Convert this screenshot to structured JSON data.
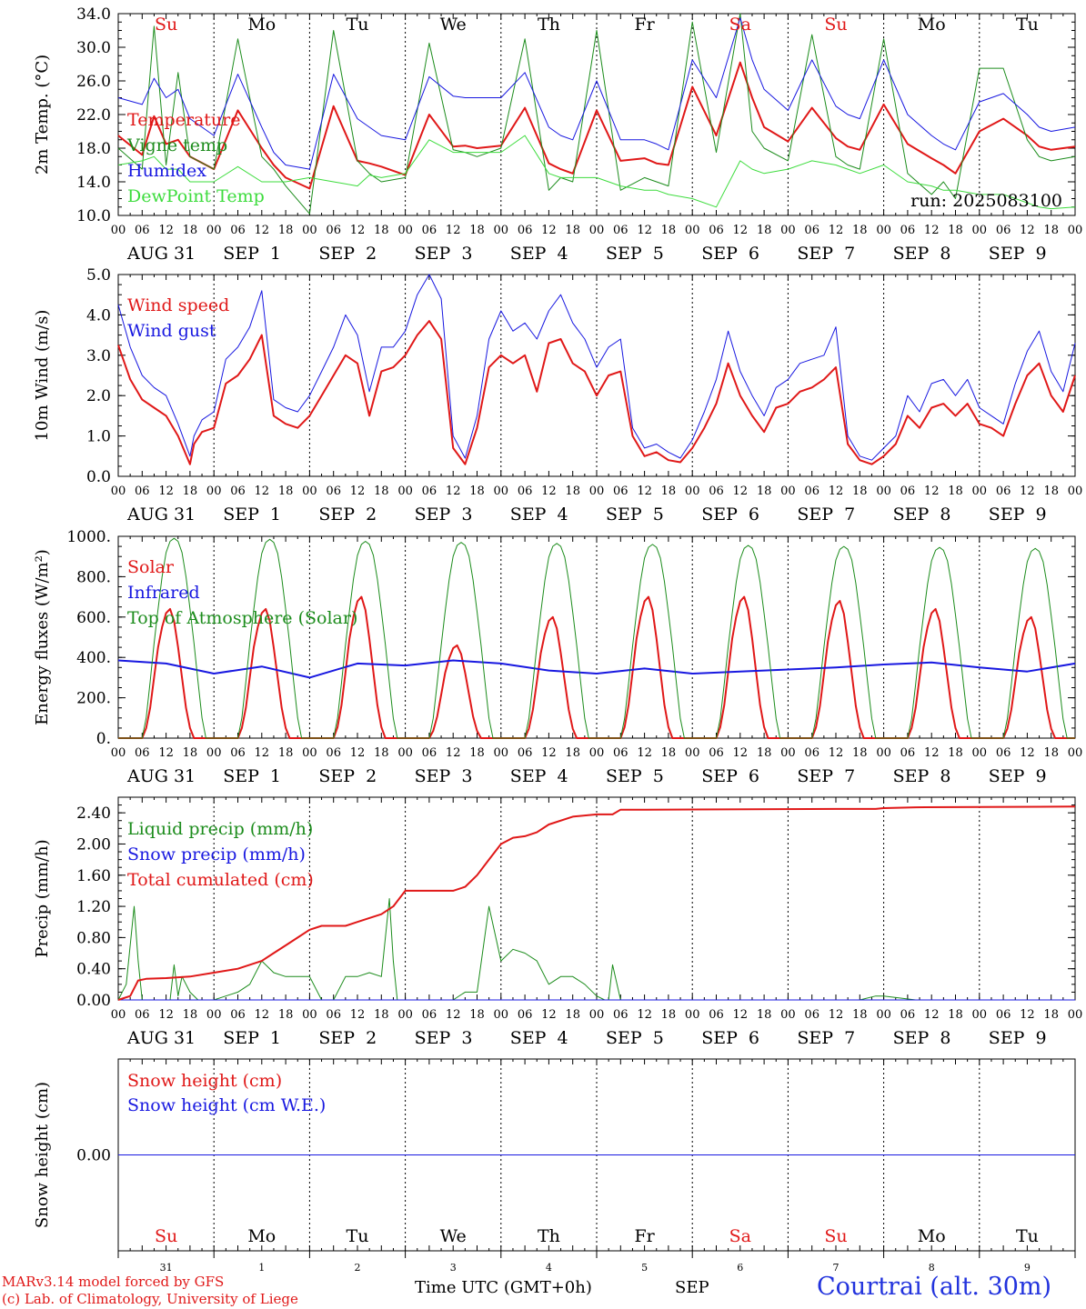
{
  "run_label": "run: 2025083100",
  "weekdays": [
    "Su",
    "Mo",
    "Tu",
    "We",
    "Th",
    "Fr",
    "Sa",
    "Su",
    "Mo",
    "Tu"
  ],
  "weekend_flags": [
    true,
    false,
    false,
    false,
    false,
    false,
    true,
    true,
    false,
    false
  ],
  "date_labels": [
    "AUG 31",
    "SEP  1",
    "SEP  2",
    "SEP  3",
    "SEP  4",
    "SEP  5",
    "SEP  6",
    "SEP  7",
    "SEP  8",
    "SEP  9"
  ],
  "hour_labels": [
    "00",
    "06",
    "12",
    "18"
  ],
  "bottom_days": [
    "31",
    "1",
    "2",
    "3",
    "4",
    "5",
    "6",
    "7",
    "8",
    "9"
  ],
  "month_label": "SEP",
  "time_label": "Time UTC (GMT+0h)",
  "credit_line1": "MARv3.14 model forced by GFS",
  "credit_line2": "(c) Lab. of Climatology, University of Liege",
  "station_label": "Courtrai (alt. 30m)",
  "colors": {
    "red": "#e01818",
    "green": "#1c8c1c",
    "blue": "#1818e0",
    "lightgreen": "#3ddc3d",
    "black": "#000000"
  },
  "chart_data": [
    {
      "type": "line",
      "ylabel": "2m Temp. (°C)",
      "ylim": [
        10,
        34
      ],
      "yticks": [
        "10.0",
        "14.0",
        "18.0",
        "22.0",
        "26.0",
        "30.0",
        "34.0"
      ],
      "x_unit": "hours since 2025-08-31 00 UTC",
      "x": [
        0,
        6,
        9,
        12,
        15,
        18,
        24,
        30,
        36,
        39,
        42,
        48,
        54,
        60,
        63,
        66,
        72,
        78,
        84,
        87,
        90,
        96,
        102,
        108,
        111,
        114,
        120,
        126,
        132,
        135,
        138,
        144,
        150,
        156,
        159,
        162,
        168,
        174,
        180,
        183,
        186,
        192,
        198,
        204,
        207,
        210,
        216,
        222,
        228,
        231,
        234,
        240
      ],
      "series": [
        {
          "name": "Temperature",
          "color": "red",
          "width": 2,
          "values": [
            19.5,
            17.2,
            21.8,
            18.5,
            19.0,
            17.0,
            15.5,
            22.5,
            18.0,
            16.0,
            14.5,
            13.2,
            23.0,
            16.5,
            16.2,
            15.8,
            14.8,
            22.0,
            18.2,
            18.3,
            18.0,
            18.3,
            22.8,
            16.2,
            15.5,
            15.0,
            22.5,
            16.5,
            16.8,
            16.2,
            16.0,
            25.3,
            19.5,
            28.2,
            24.0,
            20.5,
            18.8,
            22.8,
            19.2,
            18.2,
            17.8,
            23.2,
            18.5,
            16.8,
            16.0,
            15.0,
            20.0,
            21.5,
            19.5,
            18.2,
            17.8,
            18.2
          ]
        },
        {
          "name": "Vigne temp",
          "color": "green",
          "width": 1,
          "values": [
            18.0,
            15.5,
            32.5,
            16.0,
            27.0,
            17.0,
            15.5,
            31.0,
            17.0,
            15.5,
            13.5,
            10.2,
            32.0,
            16.5,
            15.0,
            14.0,
            14.5,
            30.5,
            17.8,
            17.5,
            17.0,
            18.0,
            31.0,
            13.0,
            14.5,
            14.0,
            32.0,
            13.0,
            14.5,
            14.0,
            13.5,
            33.0,
            17.5,
            34.0,
            20.0,
            18.0,
            16.5,
            31.5,
            17.0,
            16.0,
            15.5,
            31.0,
            15.0,
            12.5,
            14.0,
            12.0,
            27.5,
            27.5,
            19.0,
            17.0,
            16.5,
            17.0
          ]
        },
        {
          "name": "Humidex",
          "color": "blue",
          "width": 1,
          "values": [
            24.0,
            23.2,
            26.3,
            24.0,
            25.0,
            21.5,
            19.5,
            26.8,
            20.5,
            17.5,
            16.0,
            15.5,
            26.8,
            21.5,
            20.5,
            19.5,
            19.0,
            26.5,
            24.2,
            24.0,
            24.0,
            24.0,
            27.0,
            20.5,
            19.5,
            19.0,
            26.0,
            19.0,
            19.0,
            18.5,
            17.8,
            28.5,
            24.0,
            33.5,
            28.5,
            25.0,
            22.5,
            28.5,
            23.0,
            22.0,
            21.5,
            28.5,
            22.0,
            19.5,
            18.5,
            17.8,
            23.5,
            24.5,
            22.0,
            20.5,
            20.0,
            20.5
          ]
        },
        {
          "name": "DewPoint Temp",
          "color": "lightgreen",
          "width": 1,
          "values": [
            16.0,
            16.5,
            17.0,
            15.5,
            15.5,
            14.0,
            14.0,
            15.8,
            14.0,
            14.0,
            14.0,
            14.5,
            14.0,
            13.5,
            14.8,
            14.5,
            15.0,
            19.0,
            17.5,
            17.5,
            17.5,
            17.5,
            19.5,
            15.0,
            14.5,
            14.5,
            14.5,
            13.5,
            13.0,
            13.0,
            12.5,
            12.0,
            11.0,
            16.5,
            15.5,
            15.0,
            15.5,
            16.5,
            16.0,
            15.5,
            15.0,
            16.0,
            14.0,
            13.5,
            13.0,
            13.0,
            12.5,
            12.5,
            11.5,
            11.0,
            10.8,
            11.0
          ]
        }
      ]
    },
    {
      "type": "line",
      "ylabel": "10m Wind (m/s)",
      "ylim": [
        0,
        5
      ],
      "yticks": [
        "0.0",
        "1.0",
        "2.0",
        "3.0",
        "4.0",
        "5.0"
      ],
      "x": [
        0,
        3,
        6,
        9,
        12,
        15,
        18,
        19,
        21,
        24,
        27,
        30,
        33,
        36,
        39,
        42,
        45,
        48,
        51,
        54,
        57,
        60,
        63,
        66,
        69,
        72,
        75,
        78,
        81,
        84,
        87,
        90,
        93,
        96,
        99,
        102,
        105,
        108,
        111,
        114,
        117,
        120,
        123,
        126,
        129,
        132,
        135,
        138,
        141,
        144,
        147,
        150,
        153,
        156,
        159,
        162,
        165,
        168,
        171,
        174,
        177,
        180,
        183,
        186,
        189,
        192,
        195,
        198,
        201,
        204,
        207,
        210,
        213,
        216,
        219,
        222,
        225,
        228,
        231,
        234,
        237,
        240
      ],
      "series": [
        {
          "name": "Wind speed",
          "color": "red",
          "width": 2,
          "values": [
            3.25,
            2.4,
            1.9,
            1.7,
            1.5,
            1.0,
            0.3,
            0.8,
            1.1,
            1.2,
            2.3,
            2.5,
            2.9,
            3.5,
            1.5,
            1.3,
            1.2,
            1.5,
            2.0,
            2.5,
            3.0,
            2.8,
            1.5,
            2.6,
            2.7,
            3.0,
            3.5,
            3.85,
            3.4,
            0.7,
            0.3,
            1.2,
            2.7,
            3.0,
            2.8,
            3.0,
            2.1,
            3.3,
            3.4,
            2.8,
            2.6,
            2.0,
            2.5,
            2.6,
            1.0,
            0.5,
            0.6,
            0.4,
            0.35,
            0.7,
            1.2,
            1.8,
            2.8,
            2.0,
            1.5,
            1.1,
            1.7,
            1.8,
            2.1,
            2.2,
            2.4,
            2.7,
            0.8,
            0.4,
            0.3,
            0.5,
            0.8,
            1.5,
            1.2,
            1.7,
            1.8,
            1.5,
            1.8,
            1.3,
            1.2,
            1.0,
            1.8,
            2.5,
            2.8,
            2.0,
            1.6,
            2.5
          ]
        },
        {
          "name": "Wind gust",
          "color": "blue",
          "width": 1,
          "values": [
            4.25,
            3.2,
            2.5,
            2.2,
            2.0,
            1.3,
            0.5,
            1.0,
            1.4,
            1.6,
            2.9,
            3.2,
            3.7,
            4.6,
            1.9,
            1.7,
            1.6,
            2.0,
            2.6,
            3.2,
            4.0,
            3.5,
            2.1,
            3.2,
            3.2,
            3.6,
            4.5,
            5.0,
            4.4,
            1.0,
            0.45,
            1.5,
            3.4,
            4.1,
            3.6,
            3.8,
            3.4,
            4.1,
            4.5,
            3.8,
            3.4,
            2.7,
            3.2,
            3.4,
            1.2,
            0.7,
            0.8,
            0.6,
            0.45,
            0.9,
            1.6,
            2.4,
            3.6,
            2.6,
            2.0,
            1.5,
            2.2,
            2.4,
            2.8,
            2.9,
            3.0,
            3.7,
            1.0,
            0.5,
            0.4,
            0.7,
            1.0,
            2.0,
            1.6,
            2.3,
            2.4,
            2.0,
            2.4,
            1.7,
            1.5,
            1.3,
            2.3,
            3.1,
            3.6,
            2.6,
            2.1,
            3.3
          ]
        }
      ]
    },
    {
      "type": "line",
      "ylabel": "Energy fluxes (W/m²)",
      "ylim": [
        0,
        1000
      ],
      "yticks": [
        "0.",
        "200.",
        "400.",
        "600.",
        "800.",
        "1000."
      ],
      "x": [
        0,
        3,
        6,
        7,
        8,
        9,
        10,
        11,
        12,
        13,
        14,
        15,
        16,
        17,
        18,
        19,
        20,
        21,
        22,
        23,
        24
      ],
      "series": [
        {
          "name": "Solar",
          "color": "red",
          "width": 2,
          "daily": true,
          "daily_peaks": [
            640,
            640,
            700,
            460,
            600,
            700,
            700,
            680,
            640,
            600
          ],
          "values": [
            0,
            0,
            0,
            50,
            150,
            300,
            450,
            550,
            620,
            640,
            580,
            450,
            300,
            150,
            50,
            0,
            0,
            0,
            0,
            0,
            0
          ]
        },
        {
          "name": "Infrared",
          "color": "blue",
          "width": 2,
          "x": [
            0,
            12,
            24,
            36,
            48,
            60,
            72,
            84,
            96,
            108,
            120,
            132,
            144,
            156,
            168,
            180,
            192,
            204,
            216,
            228,
            240
          ],
          "values": [
            385,
            370,
            320,
            355,
            300,
            370,
            360,
            385,
            370,
            335,
            320,
            345,
            320,
            330,
            340,
            350,
            365,
            375,
            350,
            330,
            370
          ]
        },
        {
          "name": "Top of Atmosphere (Solar)",
          "color": "green",
          "width": 1,
          "daily": true,
          "daily_peaks": [
            990,
            985,
            975,
            970,
            965,
            960,
            955,
            950,
            945,
            940
          ],
          "values": [
            0,
            0,
            0,
            100,
            280,
            470,
            640,
            800,
            920,
            975,
            990,
            975,
            920,
            800,
            640,
            470,
            280,
            100,
            0,
            0,
            0
          ]
        }
      ]
    },
    {
      "type": "line",
      "ylabel": "Precip (mm/h)",
      "ylim": [
        0,
        2.6
      ],
      "yticks": [
        "0.00",
        "0.40",
        "0.80",
        "1.20",
        "1.60",
        "2.00",
        "2.40"
      ],
      "x": [
        0,
        2,
        4,
        5,
        6,
        7,
        8,
        10,
        12,
        13,
        14,
        15,
        16,
        18,
        20,
        24,
        27,
        30,
        33,
        36,
        39,
        42,
        45,
        48,
        51,
        54,
        57,
        60,
        63,
        66,
        68,
        69,
        70,
        72,
        75,
        78,
        81,
        84,
        87,
        90,
        93,
        96,
        99,
        102,
        105,
        108,
        111,
        114,
        117,
        120,
        122,
        123,
        124,
        126,
        132,
        180,
        186,
        190,
        192,
        200,
        240
      ],
      "series": [
        {
          "name": "Liquid precip (mm/h)",
          "color": "green",
          "width": 1,
          "values": [
            0,
            0.2,
            1.2,
            0.5,
            0,
            0,
            0,
            0,
            0,
            0,
            0.45,
            0.05,
            0.3,
            0.1,
            0,
            0,
            0.05,
            0.1,
            0.2,
            0.5,
            0.35,
            0.3,
            0.3,
            0.3,
            0,
            0,
            0.3,
            0.3,
            0.35,
            0.3,
            1.3,
            0.5,
            0,
            0,
            0,
            0,
            0,
            0,
            0.1,
            0.1,
            1.2,
            0.5,
            0.65,
            0.6,
            0.5,
            0.2,
            0.3,
            0.3,
            0.2,
            0.05,
            0,
            0,
            0.45,
            0,
            0,
            0,
            0,
            0.05,
            0.05,
            0,
            0
          ]
        },
        {
          "name": "Snow precip (mm/h)",
          "color": "blue",
          "width": 1,
          "x": [
            0,
            240
          ],
          "values": [
            0,
            0
          ]
        },
        {
          "name": "Total cumulated (cm)",
          "color": "red",
          "width": 2,
          "x": [
            0,
            3,
            5,
            7,
            12,
            18,
            24,
            30,
            36,
            39,
            42,
            45,
            48,
            51,
            54,
            57,
            60,
            63,
            66,
            69,
            72,
            75,
            78,
            81,
            84,
            87,
            90,
            93,
            96,
            99,
            102,
            105,
            108,
            114,
            120,
            124,
            126,
            132,
            180,
            186,
            190,
            192,
            200,
            240
          ],
          "values": [
            0,
            0.05,
            0.25,
            0.27,
            0.28,
            0.3,
            0.35,
            0.4,
            0.5,
            0.6,
            0.7,
            0.8,
            0.9,
            0.95,
            0.95,
            0.95,
            1.0,
            1.05,
            1.1,
            1.2,
            1.4,
            1.4,
            1.4,
            1.4,
            1.4,
            1.45,
            1.6,
            1.8,
            2.0,
            2.08,
            2.1,
            2.15,
            2.25,
            2.35,
            2.38,
            2.38,
            2.44,
            2.44,
            2.45,
            2.45,
            2.45,
            2.46,
            2.47,
            2.48
          ]
        }
      ]
    },
    {
      "type": "line",
      "ylabel": "Snow height (cm)",
      "ylim": [
        -1,
        1
      ],
      "yticks": [
        "0.00"
      ],
      "x": [
        0,
        240
      ],
      "series": [
        {
          "name": "Snow height (cm)",
          "color": "red",
          "width": 1,
          "values": [
            0,
            0
          ]
        },
        {
          "name": "Snow height (cm W.E.)",
          "color": "blue",
          "width": 1,
          "values": [
            0,
            0
          ]
        }
      ]
    }
  ]
}
